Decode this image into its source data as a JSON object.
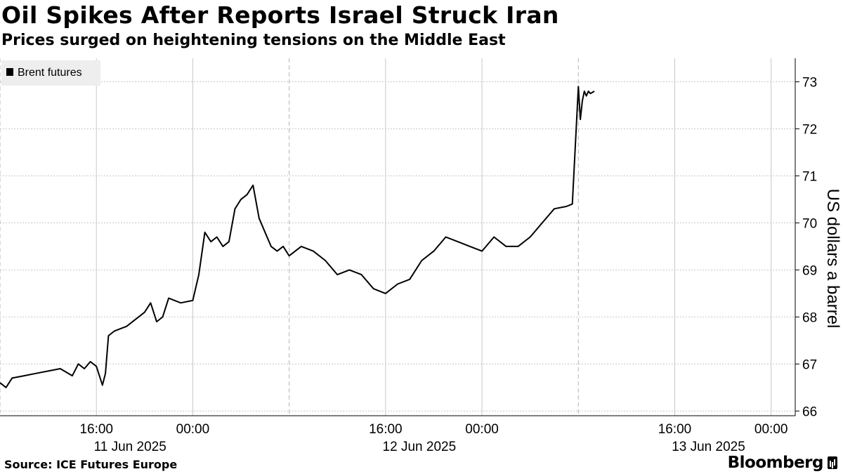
{
  "header": {
    "title": "Oil Spikes After Reports Israel Struck Iran",
    "subtitle": "Prices surged on heightening tensions on the Middle East"
  },
  "footer": {
    "source": "Source: ICE Futures Europe",
    "brand": "Bloomberg"
  },
  "colors": {
    "line": "#000000",
    "grid": "#c8c8c8",
    "legend_bg": "#eeeeee"
  },
  "chart_data": {
    "type": "line",
    "title": "Oil Spikes After Reports Israel Struck Iran",
    "subtitle": "Prices surged on heightening tensions on the Middle East",
    "ylabel": "US dollars a barrel",
    "ylim": [
      65.9,
      73.5
    ],
    "yticks": [
      66,
      67,
      68,
      69,
      70,
      71,
      72,
      73
    ],
    "xlim": [
      "2025-06-11T08:00",
      "2025-06-14T02:00"
    ],
    "xticks": [
      {
        "time": "2025-06-11T16:00",
        "label": "16:00",
        "date_label": "11 Jun 2025"
      },
      {
        "time": "2025-06-12T00:00",
        "label": "00:00",
        "date_label": ""
      },
      {
        "time": "2025-06-12T16:00",
        "label": "16:00",
        "date_label": "12 Jun 2025"
      },
      {
        "time": "2025-06-13T00:00",
        "label": "00:00",
        "date_label": ""
      },
      {
        "time": "2025-06-13T16:00",
        "label": "16:00",
        "date_label": "13 Jun 2025"
      },
      {
        "time": "2025-06-14T00:00",
        "label": "00:00",
        "date_label": ""
      }
    ],
    "session_boundaries": [
      "2025-06-11T08:00",
      "2025-06-12T08:00",
      "2025-06-13T08:00"
    ],
    "grid": true,
    "legend_position": "top-left",
    "series": [
      {
        "name": "Brent futures",
        "x": [
          "2025-06-11T08:00",
          "2025-06-11T08:30",
          "2025-06-11T09:00",
          "2025-06-11T10:00",
          "2025-06-11T11:00",
          "2025-06-11T12:00",
          "2025-06-11T13:00",
          "2025-06-11T14:00",
          "2025-06-11T14:30",
          "2025-06-11T15:00",
          "2025-06-11T15:30",
          "2025-06-11T16:00",
          "2025-06-11T16:30",
          "2025-06-11T16:45",
          "2025-06-11T17:00",
          "2025-06-11T17:30",
          "2025-06-11T18:00",
          "2025-06-11T18:30",
          "2025-06-11T19:00",
          "2025-06-11T20:00",
          "2025-06-11T20:30",
          "2025-06-11T21:00",
          "2025-06-11T21:30",
          "2025-06-11T22:00",
          "2025-06-11T23:00",
          "2025-06-12T00:00",
          "2025-06-12T00:30",
          "2025-06-12T01:00",
          "2025-06-12T01:30",
          "2025-06-12T02:00",
          "2025-06-12T02:30",
          "2025-06-12T03:00",
          "2025-06-12T03:30",
          "2025-06-12T04:00",
          "2025-06-12T04:30",
          "2025-06-12T05:00",
          "2025-06-12T05:30",
          "2025-06-12T06:00",
          "2025-06-12T06:30",
          "2025-06-12T07:00",
          "2025-06-12T07:30",
          "2025-06-12T08:00",
          "2025-06-12T09:00",
          "2025-06-12T10:00",
          "2025-06-12T11:00",
          "2025-06-12T12:00",
          "2025-06-12T13:00",
          "2025-06-12T14:00",
          "2025-06-12T15:00",
          "2025-06-12T16:00",
          "2025-06-12T17:00",
          "2025-06-12T18:00",
          "2025-06-12T19:00",
          "2025-06-12T20:00",
          "2025-06-12T21:00",
          "2025-06-12T22:00",
          "2025-06-12T23:00",
          "2025-06-13T00:00",
          "2025-06-13T01:00",
          "2025-06-13T02:00",
          "2025-06-13T03:00",
          "2025-06-13T04:00",
          "2025-06-13T05:00",
          "2025-06-13T06:00",
          "2025-06-13T07:00",
          "2025-06-13T07:30",
          "2025-06-13T08:00",
          "2025-06-13T08:10",
          "2025-06-13T08:20",
          "2025-06-13T08:30",
          "2025-06-13T08:40",
          "2025-06-13T08:50",
          "2025-06-13T09:00",
          "2025-06-13T09:20"
        ],
        "values": [
          66.6,
          66.5,
          66.7,
          66.75,
          66.8,
          66.85,
          66.9,
          66.75,
          67.0,
          66.9,
          67.05,
          66.95,
          66.55,
          66.8,
          67.6,
          67.7,
          67.75,
          67.8,
          67.9,
          68.1,
          68.3,
          67.9,
          68.0,
          68.4,
          68.3,
          68.35,
          68.9,
          69.8,
          69.6,
          69.7,
          69.5,
          69.6,
          70.3,
          70.5,
          70.6,
          70.8,
          70.1,
          69.8,
          69.5,
          69.4,
          69.5,
          69.3,
          69.5,
          69.4,
          69.2,
          68.9,
          69.0,
          68.9,
          68.6,
          68.5,
          68.7,
          68.8,
          69.2,
          69.4,
          69.7,
          69.6,
          69.5,
          69.4,
          69.7,
          69.5,
          69.5,
          69.7,
          70.0,
          70.3,
          70.35,
          70.4,
          72.9,
          72.2,
          72.6,
          72.8,
          72.7,
          72.8,
          72.75,
          72.8
        ]
      }
    ]
  }
}
